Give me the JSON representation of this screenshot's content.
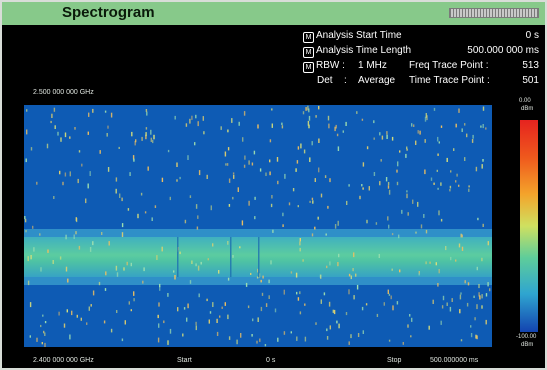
{
  "window": {
    "title": "Spectrogram"
  },
  "params": {
    "analysis_start_label": "Analysis Start Time",
    "analysis_start_value": "0 s",
    "analysis_length_label": "Analysis Time Length",
    "analysis_length_value": "500.000 000 ms",
    "rbw_label": "RBW :",
    "rbw_value": "1 MHz",
    "freq_trace_label": "Freq Trace Point :",
    "freq_trace_value": "513",
    "det_label": "Det",
    "det_sep": ":",
    "det_value": "Average",
    "time_trace_label": "Time Trace Point :",
    "time_trace_value": "501",
    "marker_glyph": "M"
  },
  "freq": {
    "top": "2.500 000 000 GHz",
    "bottom": "2.400 000 000 GHz"
  },
  "time_axis": {
    "start_label": "Start",
    "start_value": "0 s",
    "stop_label": "Stop",
    "stop_value": "500.000000 ms"
  },
  "colorbar": {
    "max_value": "0.00",
    "min_value": "-100.00",
    "unit": "dBm"
  },
  "colors": {
    "title_bar": "#87c98a",
    "plot_background": "#0e5bb4",
    "band": "#4fc3a3"
  }
}
